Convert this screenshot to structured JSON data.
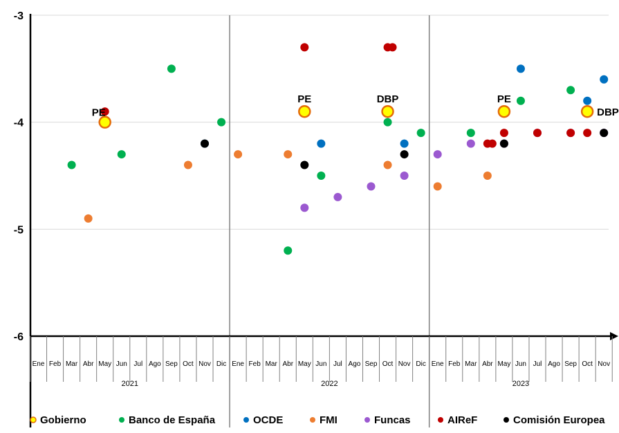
{
  "chart_data": {
    "type": "scatter",
    "ylim": [
      -6,
      -3
    ],
    "y_ticks": [
      "-3",
      "-4",
      "-5",
      "-6"
    ],
    "grid": true,
    "legend_position": "bottom",
    "months": [
      "Ene",
      "Feb",
      "Mar",
      "Abr",
      "May",
      "Jun",
      "Jul",
      "Ago",
      "Sep",
      "Oct",
      "Nov",
      "Dic"
    ],
    "years": [
      {
        "label": "2021",
        "months": [
          "Ene",
          "Feb",
          "Mar",
          "Abr",
          "May",
          "Jun",
          "Jul",
          "Ago",
          "Sep",
          "Oct",
          "Nov",
          "Dic"
        ]
      },
      {
        "label": "2022",
        "months": [
          "Ene",
          "Feb",
          "Mar",
          "Abr",
          "May",
          "Jun",
          "Jul",
          "Ago",
          "Sep",
          "Oct",
          "Nov",
          "Dic"
        ]
      },
      {
        "label": "2023",
        "months": [
          "Ene",
          "Feb",
          "Mar",
          "Abr",
          "May",
          "Jun",
          "Jul",
          "Ago",
          "Sep",
          "Oct",
          "Nov"
        ]
      }
    ],
    "series": [
      {
        "key": "gobierno",
        "name": "Gobierno",
        "color": "#FFFF00",
        "stroke": "#E46C0A",
        "points": [
          {
            "x": "2021-05",
            "y": -4.0,
            "label": "PE"
          },
          {
            "x": "2022-05",
            "y": -3.9,
            "label": "PE"
          },
          {
            "x": "2022-10",
            "y": -3.9,
            "label": "DBP"
          },
          {
            "x": "2023-05",
            "y": -3.9,
            "label": "PE"
          },
          {
            "x": "2023-10",
            "y": -3.9,
            "label": "DBP"
          }
        ]
      },
      {
        "key": "bde",
        "name": "Banco de España",
        "color": "#00B050",
        "points": [
          {
            "x": "2021-03",
            "y": -4.4
          },
          {
            "x": "2021-06",
            "y": -4.3
          },
          {
            "x": "2021-09",
            "y": -3.5
          },
          {
            "x": "2021-12",
            "y": -4.0
          },
          {
            "x": "2022-04",
            "y": -5.2
          },
          {
            "x": "2022-06",
            "y": -4.5
          },
          {
            "x": "2022-10",
            "y": -4.0
          },
          {
            "x": "2022-12",
            "y": -4.1
          },
          {
            "x": "2023-03",
            "y": -4.1
          },
          {
            "x": "2023-06",
            "y": -3.8
          },
          {
            "x": "2023-09",
            "y": -3.7
          }
        ]
      },
      {
        "key": "ocde",
        "name": "OCDE",
        "color": "#0070C0",
        "points": [
          {
            "x": "2021-11",
            "y": -4.2
          },
          {
            "x": "2022-06",
            "y": -4.2
          },
          {
            "x": "2022-11",
            "y": -4.2
          },
          {
            "x": "2023-06",
            "y": -3.5
          },
          {
            "x": "2023-10",
            "y": -3.8
          },
          {
            "x": "2023-11",
            "y": -3.6
          }
        ]
      },
      {
        "key": "fmi",
        "name": "FMI",
        "color": "#ED7D31",
        "points": [
          {
            "x": "2021-04",
            "y": -4.9
          },
          {
            "x": "2021-10",
            "y": -4.4
          },
          {
            "x": "2022-01",
            "y": -4.3
          },
          {
            "x": "2022-04",
            "y": -4.3
          },
          {
            "x": "2022-10",
            "y": -4.4
          },
          {
            "x": "2023-01",
            "y": -4.6
          },
          {
            "x": "2023-04",
            "y": -4.5
          },
          {
            "x": "2023-10",
            "y": -3.9
          }
        ]
      },
      {
        "key": "funcas",
        "name": "Funcas",
        "color": "#9B59D0",
        "points": [
          {
            "x": "2022-05",
            "y": -4.8
          },
          {
            "x": "2022-07",
            "y": -4.7
          },
          {
            "x": "2022-09",
            "y": -4.6
          },
          {
            "x": "2022-11",
            "y": -4.5
          },
          {
            "x": "2023-01",
            "y": -4.3
          },
          {
            "x": "2023-03",
            "y": -4.2
          },
          {
            "x": "2023-05",
            "y": -4.2
          },
          {
            "x": "2023-07",
            "y": -4.1
          },
          {
            "x": "2023-09",
            "y": -4.1
          },
          {
            "x": "2023-11",
            "y": -4.1
          }
        ]
      },
      {
        "key": "airef",
        "name": "AIReF",
        "color": "#C00000",
        "points": [
          {
            "x": "2021-05",
            "y": -3.9
          },
          {
            "x": "2022-05",
            "y": -3.3
          },
          {
            "x": "2022-10",
            "y": -3.3
          },
          {
            "x": "2022-10",
            "y": -3.3
          },
          {
            "x": "2023-04",
            "y": -4.2
          },
          {
            "x": "2023-04",
            "y": -4.2
          },
          {
            "x": "2023-05",
            "y": -4.1
          },
          {
            "x": "2023-07",
            "y": -4.1
          },
          {
            "x": "2023-09",
            "y": -4.1
          },
          {
            "x": "2023-10",
            "y": -4.1
          }
        ]
      },
      {
        "key": "ce",
        "name": "Comisión Europea",
        "color": "#000000",
        "points": [
          {
            "x": "2021-11",
            "y": -4.2
          },
          {
            "x": "2022-05",
            "y": -4.4
          },
          {
            "x": "2022-11",
            "y": -4.3
          },
          {
            "x": "2023-05",
            "y": -4.2
          },
          {
            "x": "2023-11",
            "y": -4.1
          }
        ]
      }
    ]
  }
}
